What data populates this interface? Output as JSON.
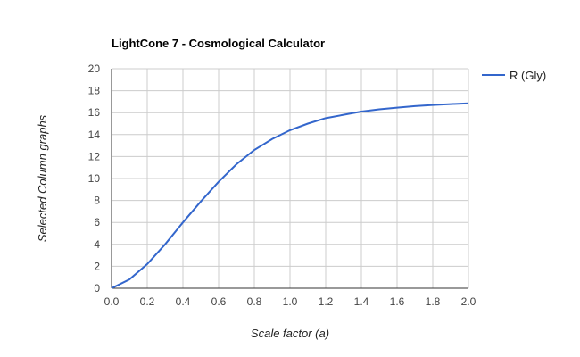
{
  "chart_data": {
    "type": "line",
    "title": "LightCone 7 - Cosmological Calculator",
    "xlabel": "Scale factor (a)",
    "ylabel": "Selected Column graphs",
    "xlim": [
      0,
      2
    ],
    "ylim": [
      0,
      20
    ],
    "xticks": [
      "0.0",
      "0.2",
      "0.4",
      "0.6",
      "0.8",
      "1.0",
      "1.2",
      "1.4",
      "1.6",
      "1.8",
      "2.0"
    ],
    "yticks": [
      "0",
      "2",
      "4",
      "6",
      "8",
      "10",
      "12",
      "14",
      "16",
      "18",
      "20"
    ],
    "grid": true,
    "legend_position": "right",
    "color": "#3366cc",
    "series": [
      {
        "name": "R (Gly)",
        "x": [
          0,
          0.1,
          0.2,
          0.3,
          0.4,
          0.5,
          0.6,
          0.7,
          0.8,
          0.9,
          1.0,
          1.1,
          1.2,
          1.3,
          1.4,
          1.5,
          1.6,
          1.7,
          1.8,
          1.9,
          2.0
        ],
        "y": [
          0,
          0.8,
          2.2,
          4.0,
          6.0,
          7.9,
          9.7,
          11.3,
          12.6,
          13.6,
          14.4,
          15.0,
          15.5,
          15.8,
          16.1,
          16.3,
          16.45,
          16.6,
          16.7,
          16.78,
          16.85
        ]
      }
    ]
  }
}
